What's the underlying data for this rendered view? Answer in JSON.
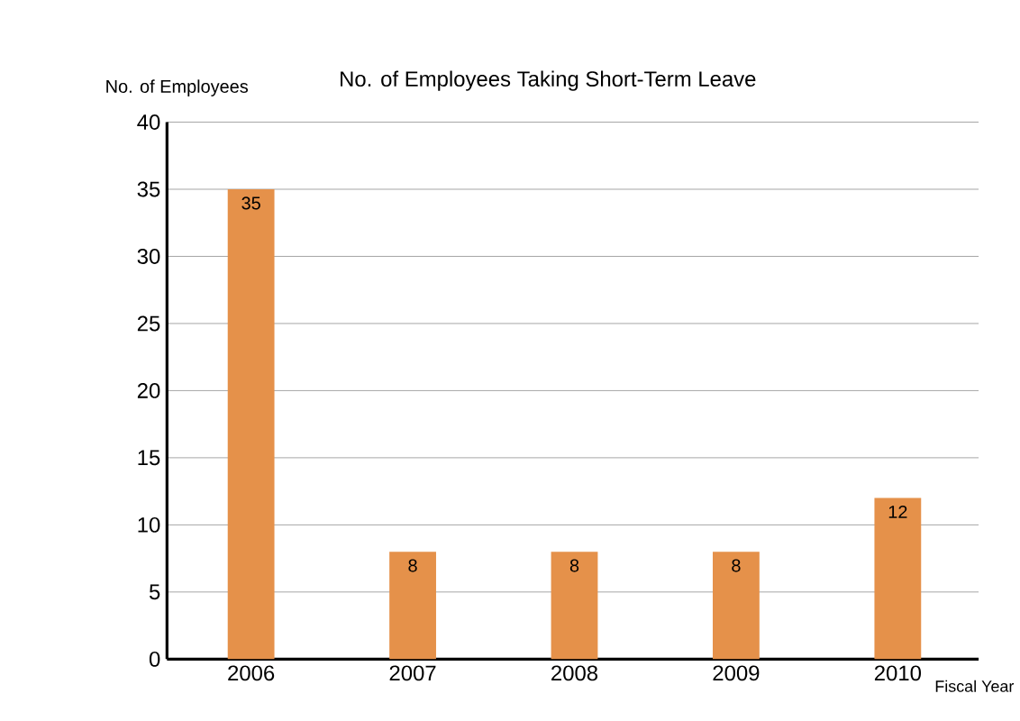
{
  "chart_data": {
    "type": "bar",
    "title": "No. of Employees Taking Short-Term Leave",
    "xlabel": "Fiscal Year",
    "ylabel": "No. of Employees",
    "categories": [
      "2006",
      "2007",
      "2008",
      "2009",
      "2010"
    ],
    "values": [
      35,
      8,
      8,
      8,
      12
    ],
    "color": "#e5914a",
    "ylim": [
      0,
      40
    ],
    "yticks": [
      0,
      5,
      10,
      15,
      20,
      25,
      30,
      35,
      40
    ],
    "grid": "y",
    "data_labels": true
  }
}
